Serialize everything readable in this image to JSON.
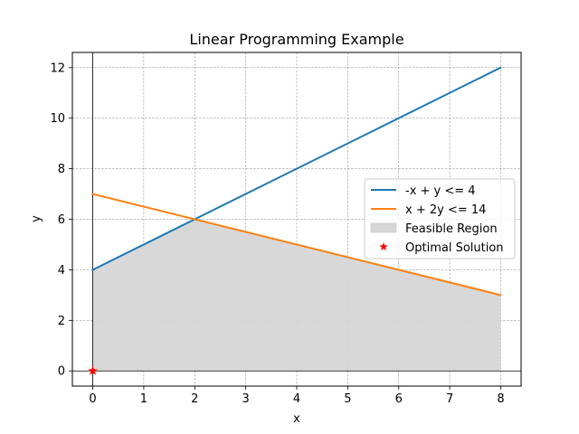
{
  "chart_data": {
    "type": "line",
    "title": "Linear Programming Example",
    "xlabel": "x",
    "ylabel": "y",
    "xlim": [
      -0.4,
      8.4
    ],
    "ylim": [
      -0.6,
      12.6
    ],
    "xticks": [
      0,
      1,
      2,
      3,
      4,
      5,
      6,
      7,
      8
    ],
    "yticks": [
      0,
      2,
      4,
      6,
      8,
      10,
      12
    ],
    "grid": true,
    "legend_position": "center-right",
    "series": [
      {
        "name": "-x + y <= 4",
        "color": "#1f77b4",
        "x": [
          0,
          8
        ],
        "y": [
          4,
          12
        ]
      },
      {
        "name": "x + 2y <= 14",
        "color": "#ff7f0e",
        "x": [
          0,
          8
        ],
        "y": [
          7,
          3
        ]
      }
    ],
    "feasible_region": {
      "name": "Feasible Region",
      "color": "#d6d6d6",
      "polygon": [
        [
          0,
          0
        ],
        [
          0,
          4
        ],
        [
          2,
          6
        ],
        [
          8,
          3
        ],
        [
          8,
          0
        ]
      ]
    },
    "optimal_solution": {
      "name": "Optimal Solution",
      "color": "#ff0000",
      "x": 0,
      "y": 0
    }
  }
}
